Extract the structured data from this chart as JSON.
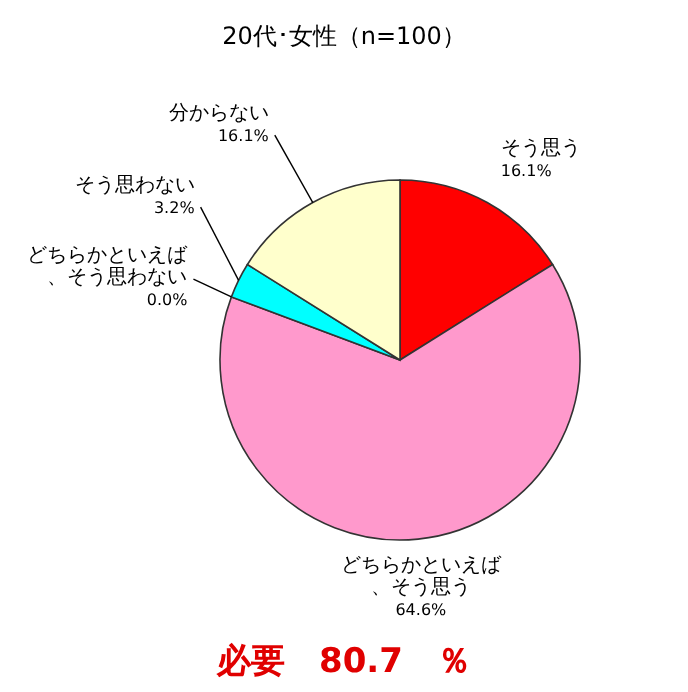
{
  "chart_data": {
    "type": "pie",
    "title": "20代･女性（n=100）",
    "categories": [
      "そう思う",
      "どちらかといえば、そう思う",
      "どちらかといえば、そう思わない",
      "そう思わない",
      "分からない"
    ],
    "values": [
      16.1,
      64.6,
      0.0,
      3.2,
      16.1
    ],
    "value_labels": [
      "16.1%",
      "64.6%",
      "0.0%",
      "3.2%",
      "16.1%"
    ],
    "colors": [
      "#ff0000",
      "#ff99cc",
      "#9999ff",
      "#00ffff",
      "#ffffcc"
    ],
    "annotations": [
      "必要　80.7　％"
    ]
  }
}
